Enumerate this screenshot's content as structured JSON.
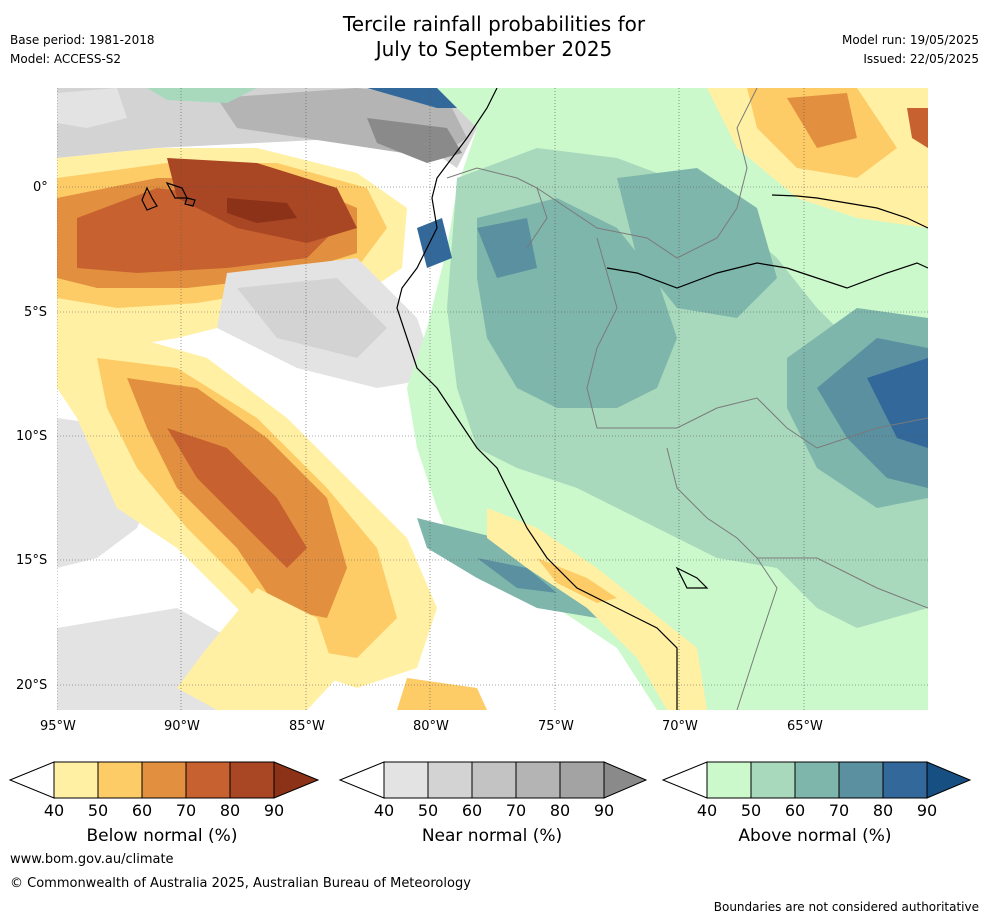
{
  "header": {
    "title_line1": "Tercile rainfall probabilities for",
    "title_line2": "July to September 2025",
    "base_period": "Base period: 1981-2018",
    "model": "Model: ACCESS-S2",
    "model_run": "Model run: 19/05/2025",
    "issued": "Issued: 22/05/2025"
  },
  "map": {
    "lat_labels": [
      "0°",
      "5°S",
      "10°S",
      "15°S",
      "20°S"
    ],
    "lon_labels": [
      "95°W",
      "90°W",
      "85°W",
      "80°W",
      "75°W",
      "70°W",
      "65°W"
    ]
  },
  "legend": {
    "below": {
      "title": "Below normal (%)",
      "ticks": [
        "40",
        "50",
        "60",
        "70",
        "80",
        "90"
      ],
      "colors": [
        "#fff0a3",
        "#fecc66",
        "#e2903f",
        "#c86130",
        "#a94624",
        "#8c3218"
      ]
    },
    "near": {
      "title": "Near normal (%)",
      "ticks": [
        "40",
        "50",
        "60",
        "70",
        "80",
        "90"
      ],
      "colors": [
        "#e3e3e3",
        "#d3d3d3",
        "#c3c3c3",
        "#b4b4b4",
        "#a3a3a3",
        "#8a8a8a"
      ]
    },
    "above": {
      "title": "Above normal (%)",
      "ticks": [
        "40",
        "50",
        "60",
        "70",
        "80",
        "90"
      ],
      "colors": [
        "#cbf9cc",
        "#a8d9bc",
        "#7fb6ab",
        "#5a90a0",
        "#33689a",
        "#184f82"
      ]
    }
  },
  "footer": {
    "website": "www.bom.gov.au/climate",
    "copyright": "© Commonwealth of Australia 2025, Australian Bureau of Meteorology",
    "disclaimer": "Boundaries are not considered authoritative"
  }
}
